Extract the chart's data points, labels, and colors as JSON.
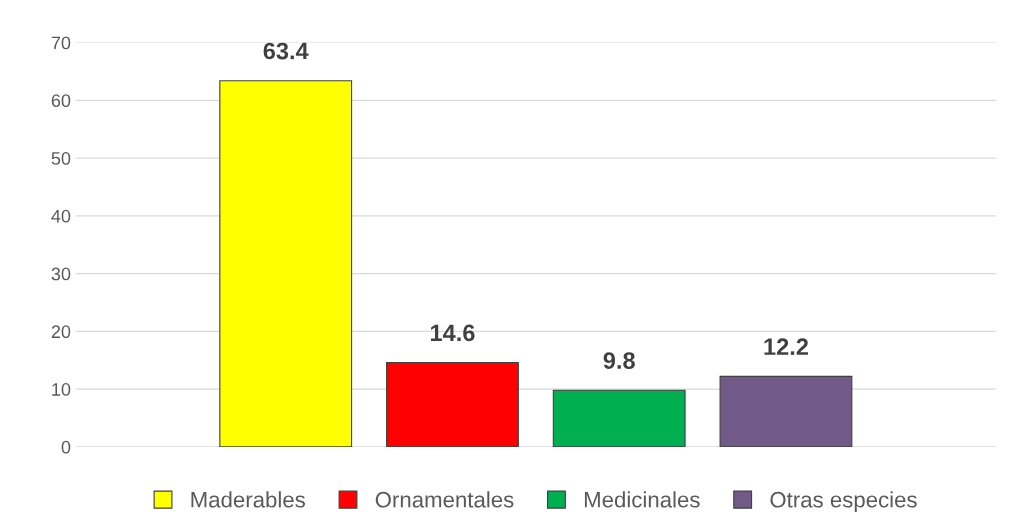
{
  "chart_data": {
    "type": "bar",
    "categories": [
      null
    ],
    "series": [
      {
        "name": "Maderables",
        "color": "#ffff00",
        "values": [
          63.4
        ]
      },
      {
        "name": "Ornamentales",
        "color": "#ff0000",
        "values": [
          14.6
        ]
      },
      {
        "name": "Medicinales",
        "color": "#00b050",
        "values": [
          9.8
        ]
      },
      {
        "name": "Otras especies",
        "color": "#725a88",
        "values": [
          12.2
        ]
      }
    ],
    "ylim": [
      0,
      70
    ],
    "yticks": [
      0,
      10,
      20,
      30,
      40,
      50,
      60,
      70
    ],
    "grid": "y",
    "legend": "bottom",
    "data_labels": true
  }
}
